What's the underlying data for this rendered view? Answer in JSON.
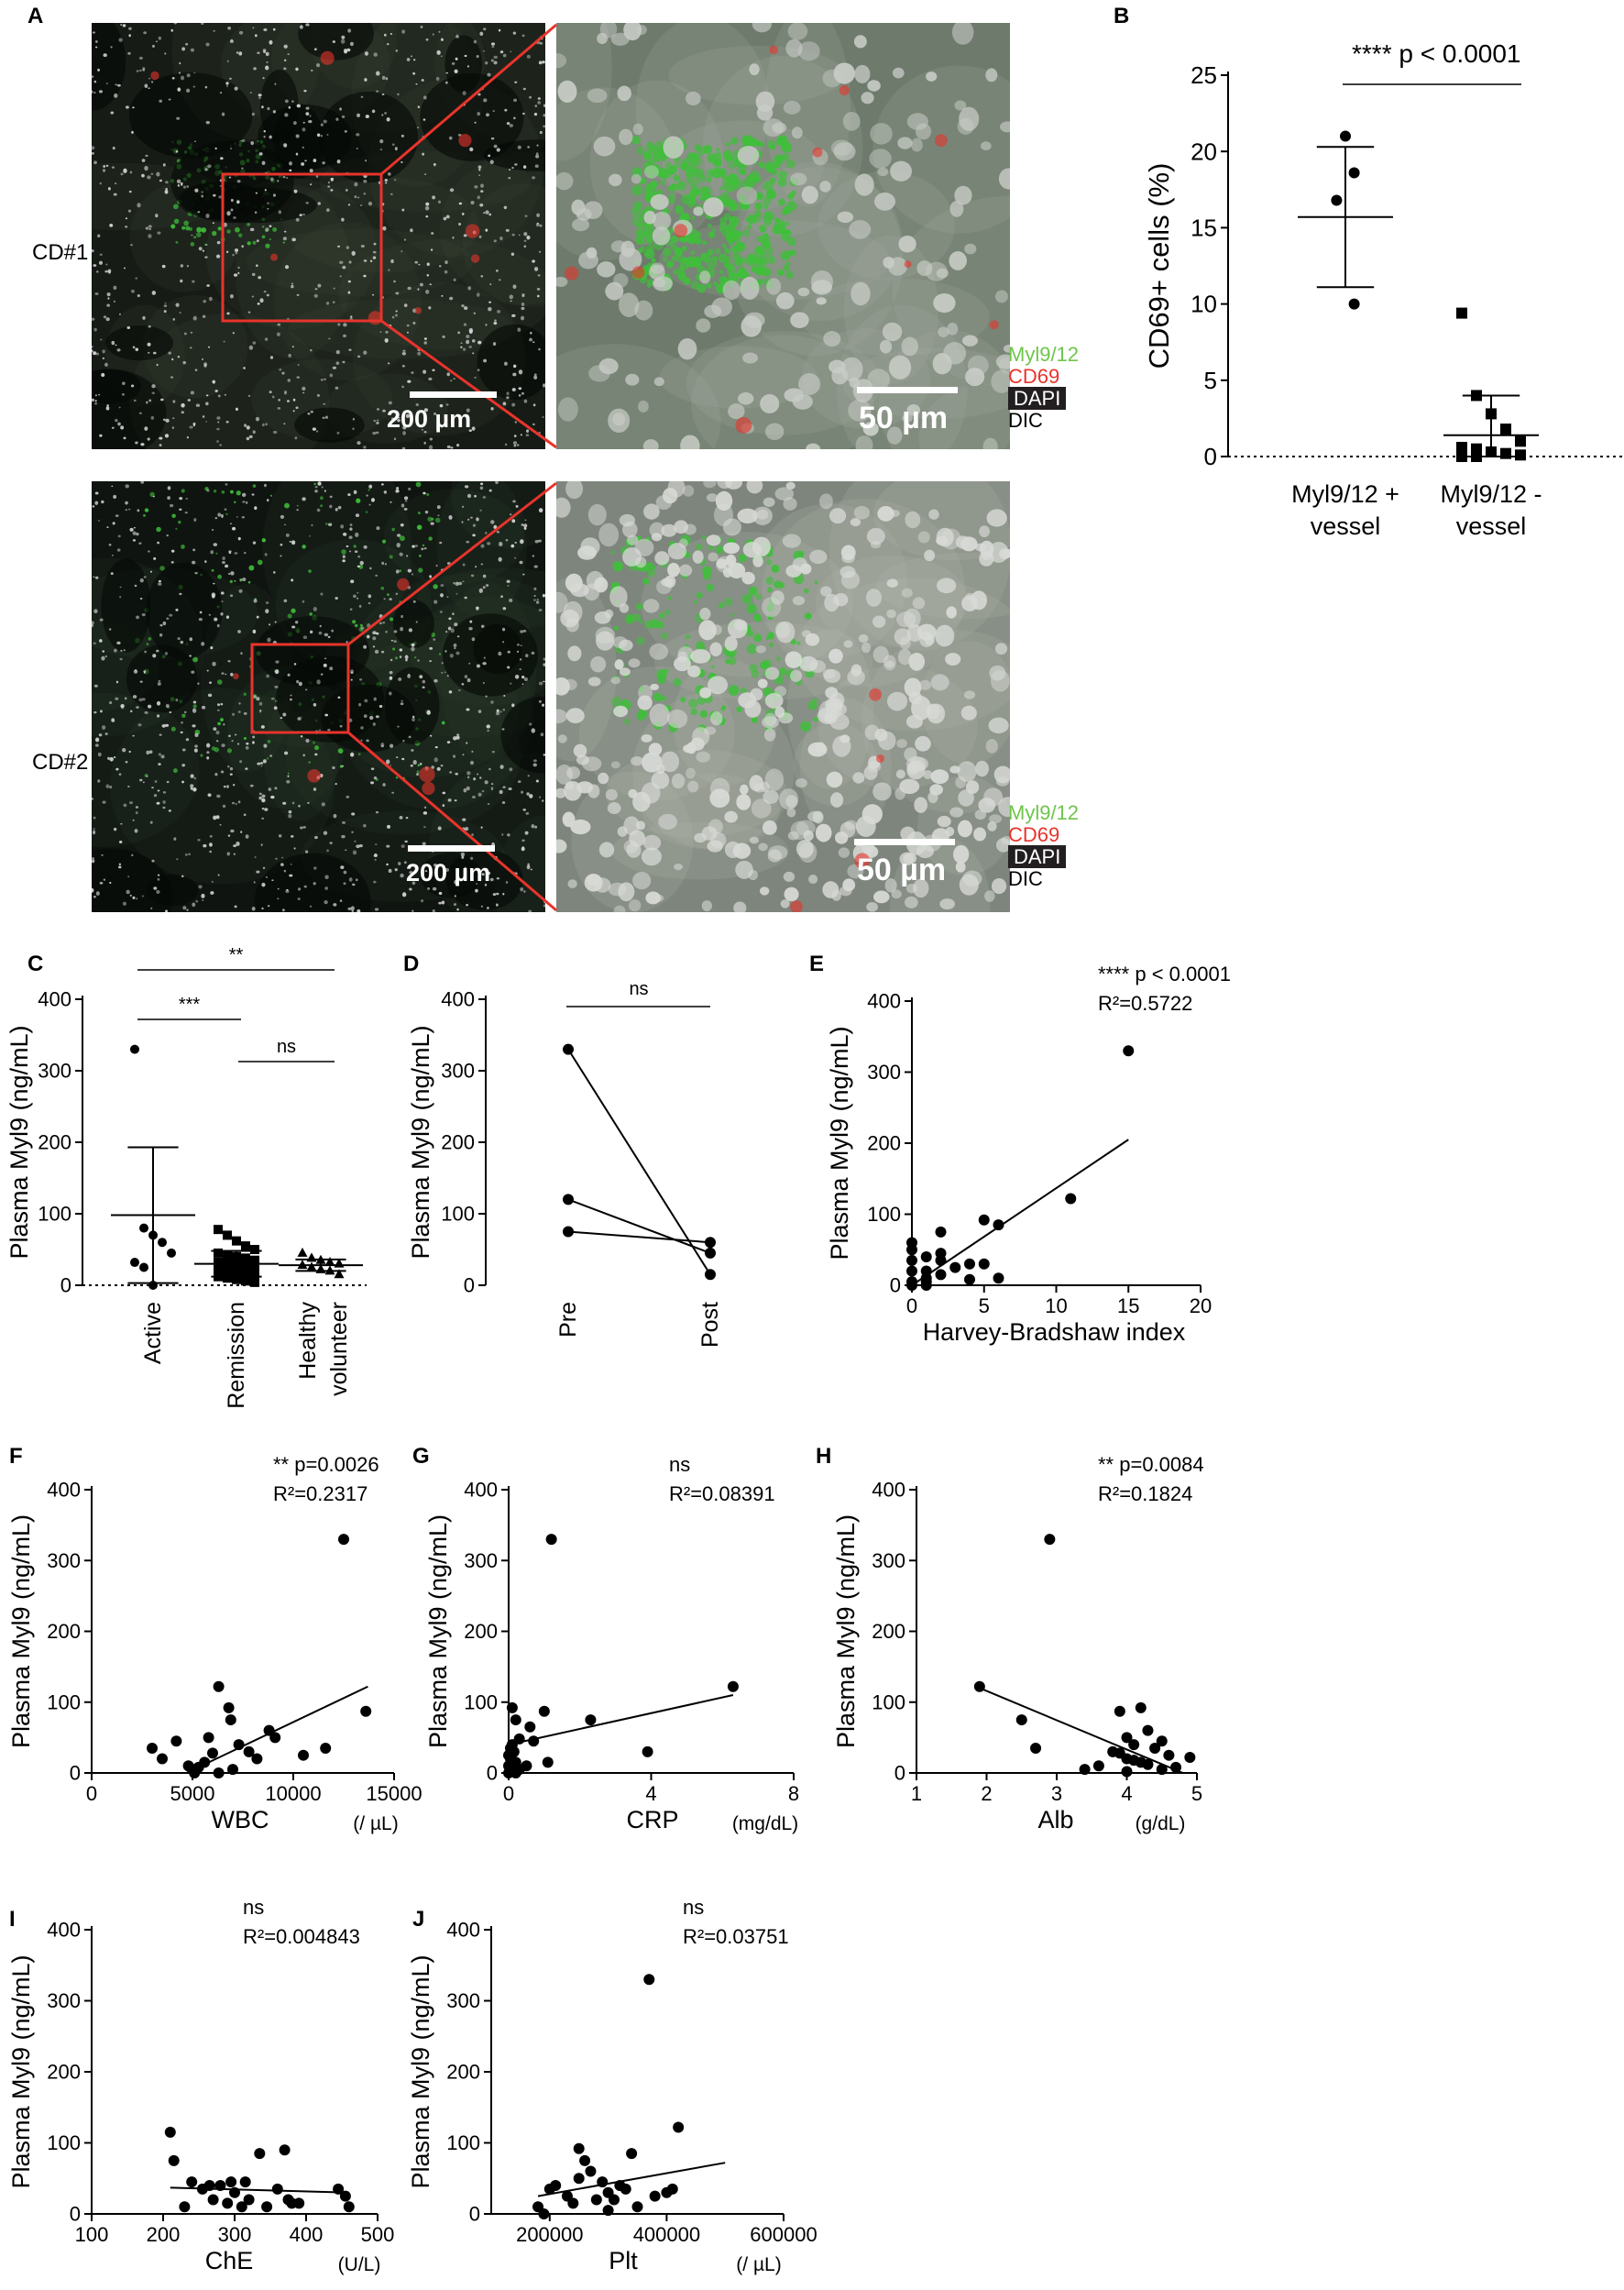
{
  "panel_labels": {
    "A": "A",
    "B": "B",
    "C": "C",
    "D": "D",
    "E": "E",
    "F": "F",
    "G": "G",
    "H": "H",
    "I": "I",
    "J": "J"
  },
  "panel_a": {
    "row_labels": [
      "CD#1",
      "CD#2"
    ],
    "scale_large": "200 µm",
    "scale_small": "50 µm",
    "legend": [
      {
        "text": "Myl9/12",
        "color": "#6fc54a"
      },
      {
        "text": "CD69",
        "color": "#e8342c"
      },
      {
        "text": "DAPI",
        "color": "#ffffff",
        "boxed": true
      },
      {
        "text": "DIC",
        "color": "#000000"
      }
    ]
  },
  "chart_data": [
    {
      "panel": "B",
      "type": "scatter",
      "ylabel": "CD69+ cells (%)",
      "ylim": [
        0,
        25
      ],
      "yticks": [
        0,
        5,
        10,
        15,
        20,
        25
      ],
      "categories": [
        "Myl9/12 + vessel",
        "Myl9/12 - vessel"
      ],
      "category_lines": [
        [
          "Myl9/12 +",
          "vessel"
        ],
        [
          "Myl9/12 -",
          "vessel"
        ]
      ],
      "series": [
        {
          "category": "Myl9/12 + vessel",
          "marker": "circle",
          "values": [
            21.0,
            18.6,
            16.8,
            10.0
          ],
          "mean": 15.7,
          "sd_low": 11.1,
          "sd_high": 20.3
        },
        {
          "category": "Myl9/12 - vessel",
          "marker": "square",
          "values": [
            9.4,
            4.0,
            2.8,
            1.8,
            1.0,
            0.6,
            0.5,
            0.3,
            0.2,
            0.1,
            0.0,
            0.0
          ],
          "mean": 1.4,
          "sd_low": 0.0,
          "sd_high": 4.0
        }
      ],
      "annotation": "**** p < 0.0001"
    },
    {
      "panel": "C",
      "type": "scatter",
      "ylabel": "Plasma Myl9 (ng/mL)",
      "ylim": [
        0,
        400
      ],
      "yticks": [
        0,
        100,
        200,
        300,
        400
      ],
      "categories": [
        "Active",
        "Remission",
        "Healthy volunteer"
      ],
      "category_lines": [
        [
          "Active"
        ],
        [
          "Remission"
        ],
        [
          "Healthy",
          "volunteer"
        ]
      ],
      "series": [
        {
          "category": "Active",
          "marker": "circle",
          "values": [
            330,
            80,
            70,
            60,
            45,
            32,
            25,
            0
          ],
          "mean": 98,
          "sd_low": 3,
          "sd_high": 193
        },
        {
          "category": "Remission",
          "marker": "square",
          "values": [
            78,
            70,
            62,
            55,
            50,
            45,
            42,
            40,
            38,
            35,
            32,
            30,
            28,
            26,
            24,
            22,
            20,
            18,
            16,
            14,
            12,
            10,
            8,
            6,
            4
          ],
          "mean": 30,
          "sd_low": 12,
          "sd_high": 48
        },
        {
          "category": "Healthy volunteer",
          "marker": "triangle",
          "values": [
            45,
            38,
            35,
            32,
            30,
            28,
            25,
            22,
            20,
            15
          ],
          "mean": 28,
          "sd_low": 20,
          "sd_high": 36
        }
      ],
      "comparisons": [
        {
          "from": "Active",
          "to": "Healthy volunteer",
          "label": "**"
        },
        {
          "from": "Active",
          "to": "Remission",
          "label": "***"
        },
        {
          "from": "Remission",
          "to": "Healthy volunteer",
          "label": "ns"
        }
      ]
    },
    {
      "panel": "D",
      "type": "line",
      "ylabel": "Plasma Myl9 (ng/mL)",
      "ylim": [
        0,
        400
      ],
      "yticks": [
        0,
        100,
        200,
        300,
        400
      ],
      "categories": [
        "Pre",
        "Post"
      ],
      "series": [
        {
          "values": [
            330,
            15
          ]
        },
        {
          "values": [
            120,
            45
          ]
        },
        {
          "values": [
            75,
            60
          ]
        }
      ],
      "annotation": "ns"
    },
    {
      "panel": "E",
      "type": "scatter",
      "xlabel": "Harvey-Bradshaw index",
      "ylabel": "Plasma Myl9 (ng/mL)",
      "xlim": [
        0,
        20
      ],
      "ylim": [
        0,
        400
      ],
      "xticks": [
        0,
        5,
        10,
        15,
        20
      ],
      "yticks": [
        0,
        100,
        200,
        300,
        400
      ],
      "x": [
        15,
        11,
        5,
        6,
        4,
        2,
        1,
        0,
        0,
        0,
        0,
        1,
        1,
        2,
        2,
        3,
        4,
        6,
        0,
        1,
        2,
        5,
        0,
        1
      ],
      "y": [
        330,
        122,
        92,
        85,
        30,
        75,
        40,
        60,
        50,
        35,
        20,
        10,
        5,
        35,
        15,
        25,
        8,
        10,
        5,
        20,
        45,
        30,
        0,
        0
      ],
      "fit": {
        "x": [
          0,
          15
        ],
        "y": [
          0,
          205
        ]
      },
      "annotation": [
        "**** p < 0.0001",
        "R²=0.5722"
      ]
    },
    {
      "panel": "F",
      "type": "scatter",
      "xlabel": "WBC",
      "xunit": "(/ µL)",
      "ylabel": "Plasma Myl9 (ng/mL)",
      "xlim": [
        0,
        15000
      ],
      "ylim": [
        0,
        400
      ],
      "xticks": [
        0,
        5000,
        10000,
        15000
      ],
      "yticks": [
        0,
        100,
        200,
        300,
        400
      ],
      "x": [
        12500,
        13600,
        6300,
        6800,
        6900,
        5800,
        3000,
        3500,
        4200,
        4800,
        5000,
        5300,
        5600,
        6000,
        6300,
        7000,
        7300,
        7800,
        8200,
        8800,
        9100,
        10500,
        11600,
        5100
      ],
      "y": [
        330,
        87,
        122,
        92,
        75,
        50,
        35,
        20,
        45,
        10,
        5,
        8,
        15,
        28,
        0,
        5,
        40,
        30,
        20,
        60,
        50,
        25,
        35,
        0
      ],
      "fit": {
        "x": [
          4700,
          13700
        ],
        "y": [
          0,
          122
        ]
      },
      "annotation": [
        "** p=0.0026",
        "R²=0.2317"
      ]
    },
    {
      "panel": "G",
      "type": "scatter",
      "xlabel": "CRP",
      "xunit": "(mg/dL)",
      "ylabel": "Plasma Myl9 (ng/mL)",
      "xlim": [
        0,
        8
      ],
      "ylim": [
        0,
        400
      ],
      "xticks": [
        0,
        4,
        8
      ],
      "yticks": [
        0,
        100,
        200,
        300,
        400
      ],
      "x": [
        1.2,
        6.3,
        0.1,
        0.2,
        1.0,
        2.3,
        3.9,
        0.6,
        0.3,
        0.1,
        0.05,
        0.15,
        0.0,
        0.05,
        0.2,
        0.7,
        0.5,
        0.1,
        0.0,
        1.1,
        0.3,
        0.2,
        0.0,
        0.1
      ],
      "y": [
        330,
        122,
        92,
        75,
        87,
        75,
        30,
        65,
        48,
        40,
        35,
        30,
        25,
        20,
        15,
        45,
        10,
        5,
        0,
        15,
        5,
        0,
        10,
        2
      ],
      "fit": {
        "x": [
          0,
          6.3
        ],
        "y": [
          40,
          110
        ]
      },
      "annotation": [
        "ns",
        "R²=0.08391"
      ]
    },
    {
      "panel": "H",
      "type": "scatter",
      "xlabel": "Alb",
      "xunit": "(g/dL)",
      "ylabel": "Plasma Myl9 (ng/mL)",
      "xlim": [
        1,
        5
      ],
      "ylim": [
        0,
        400
      ],
      "xticks": [
        1,
        2,
        3,
        4,
        5
      ],
      "yticks": [
        0,
        100,
        200,
        300,
        400
      ],
      "x": [
        2.9,
        1.9,
        2.5,
        2.7,
        3.9,
        4.2,
        4.3,
        4.0,
        4.5,
        4.1,
        4.4,
        3.8,
        4.6,
        4.9,
        4.0,
        4.2,
        3.6,
        3.4,
        4.7,
        4.1,
        4.3,
        3.9,
        4.5,
        4.0
      ],
      "y": [
        330,
        122,
        75,
        35,
        87,
        92,
        60,
        50,
        45,
        40,
        35,
        30,
        25,
        22,
        20,
        15,
        10,
        5,
        8,
        18,
        12,
        28,
        5,
        2
      ],
      "fit": {
        "x": [
          1.9,
          4.8
        ],
        "y": [
          120,
          0
        ]
      },
      "annotation": [
        "** p=0.0084",
        "R²=0.1824"
      ]
    },
    {
      "panel": "I",
      "type": "scatter",
      "xlabel": "ChE",
      "xunit": "(U/L)",
      "ylabel": "Plasma Myl9 (ng/mL)",
      "xlim": [
        100,
        500
      ],
      "ylim": [
        0,
        400
      ],
      "xticks": [
        100,
        200,
        300,
        400,
        500
      ],
      "yticks": [
        0,
        100,
        200,
        300,
        400
      ],
      "x": [
        210,
        215,
        240,
        255,
        270,
        280,
        290,
        295,
        300,
        310,
        315,
        320,
        335,
        345,
        360,
        370,
        375,
        380,
        390,
        445,
        455,
        460,
        230,
        265
      ],
      "y": [
        115,
        75,
        45,
        35,
        20,
        40,
        15,
        45,
        30,
        10,
        45,
        20,
        85,
        10,
        35,
        90,
        20,
        15,
        15,
        35,
        25,
        10,
        10,
        40
      ],
      "fit": {
        "x": [
          210,
          460
        ],
        "y": [
          37,
          30
        ]
      },
      "annotation": [
        "ns",
        "R²=0.004843"
      ]
    },
    {
      "panel": "J",
      "type": "scatter",
      "xlabel": "Plt",
      "xunit": "(/ µL)",
      "ylabel": "Plasma Myl9 (ng/mL)",
      "xlim": [
        100000,
        600000
      ],
      "ylim": [
        0,
        400
      ],
      "xticks": [
        200000,
        400000,
        600000
      ],
      "yticks": [
        0,
        100,
        200,
        300,
        400
      ],
      "x": [
        370000,
        420000,
        250000,
        260000,
        340000,
        180000,
        200000,
        210000,
        230000,
        240000,
        250000,
        270000,
        280000,
        290000,
        300000,
        310000,
        320000,
        330000,
        350000,
        380000,
        400000,
        410000,
        190000,
        300000
      ],
      "y": [
        330,
        122,
        92,
        75,
        85,
        10,
        35,
        40,
        25,
        15,
        50,
        60,
        20,
        45,
        30,
        20,
        40,
        35,
        10,
        25,
        30,
        35,
        0,
        5
      ],
      "fit": {
        "x": [
          180000,
          500000
        ],
        "y": [
          25,
          72
        ]
      },
      "annotation": [
        "ns",
        "R²=0.03751"
      ]
    }
  ]
}
